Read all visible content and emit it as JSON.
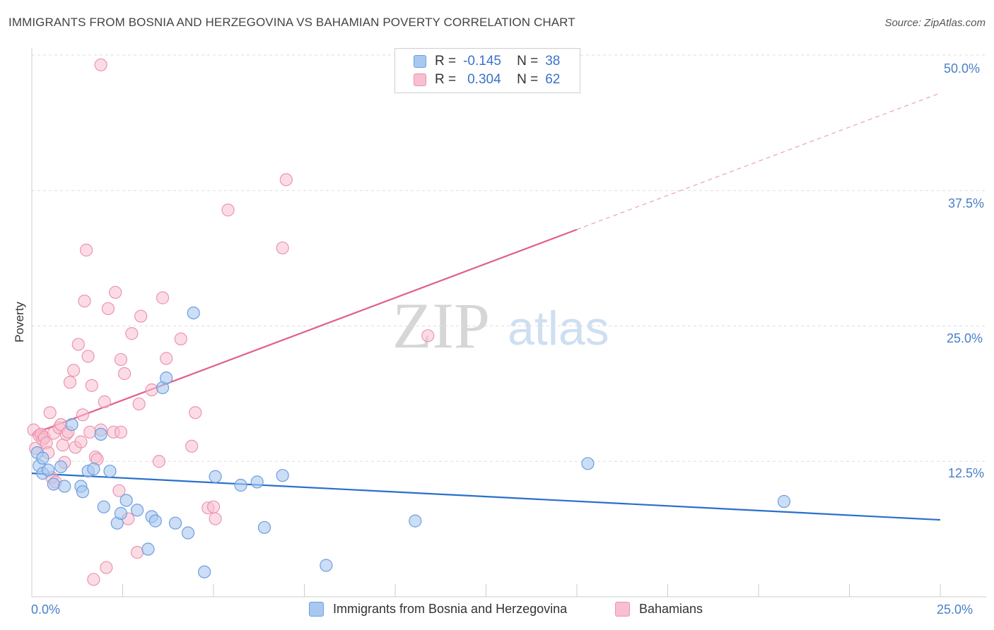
{
  "title": "IMMIGRANTS FROM BOSNIA AND HERZEGOVINA VS BAHAMIAN POVERTY CORRELATION CHART",
  "source": "Source: ZipAtlas.com",
  "watermark": {
    "zip": "ZIP",
    "atlas": "atlas"
  },
  "legend": {
    "rows": [
      {
        "r_label": "R =",
        "r_value": "-0.145",
        "n_label": "N =",
        "n_value": "38"
      },
      {
        "r_label": "R =",
        "r_value": "0.304",
        "n_label": "N =",
        "n_value": "62"
      }
    ]
  },
  "bottom_legend": [
    "Immigrants from Bosnia and Herzegovina",
    "Bahamians"
  ],
  "colors": {
    "blue_fill": "#a9c8ef",
    "blue_stroke": "#6d9ee0",
    "blue_line": "#2a6fcc",
    "pink_fill": "#f7bfd0",
    "pink_stroke": "#ec94b0",
    "pink_line": "#e0608a",
    "grid": "#dddddd",
    "tick_text": "#4a7fc8"
  },
  "chart_data": {
    "type": "scatter",
    "title": "IMMIGRANTS FROM BOSNIA AND HERZEGOVINA VS BAHAMIAN POVERTY CORRELATION CHART",
    "xlabel": "",
    "ylabel": "Poverty",
    "xlim": [
      0,
      25
    ],
    "ylim": [
      0,
      50
    ],
    "x_tick_labels": [
      "0.0%",
      "25.0%"
    ],
    "y_tick_labels": [
      "12.5%",
      "25.0%",
      "37.5%",
      "50.0%"
    ],
    "y_tick_values": [
      12.5,
      25.0,
      37.5,
      50.0
    ],
    "grid": true,
    "series": [
      {
        "name": "Immigrants from Bosnia and Herzegovina",
        "r": -0.145,
        "n": 38,
        "trend": {
          "x": [
            0,
            25
          ],
          "y": [
            11.4,
            7.1
          ]
        },
        "points": [
          [
            0.15,
            13.3
          ],
          [
            0.2,
            12.1
          ],
          [
            0.3,
            11.4
          ],
          [
            0.45,
            11.7
          ],
          [
            0.6,
            10.4
          ],
          [
            0.8,
            12.0
          ],
          [
            0.9,
            10.2
          ],
          [
            1.1,
            15.9
          ],
          [
            1.35,
            10.2
          ],
          [
            1.4,
            9.7
          ],
          [
            1.55,
            11.6
          ],
          [
            1.7,
            11.8
          ],
          [
            1.9,
            15.0
          ],
          [
            1.98,
            8.3
          ],
          [
            2.15,
            11.6
          ],
          [
            2.35,
            6.8
          ],
          [
            2.45,
            7.7
          ],
          [
            2.6,
            8.9
          ],
          [
            2.9,
            8.0
          ],
          [
            3.2,
            4.4
          ],
          [
            3.3,
            7.4
          ],
          [
            3.4,
            7.0
          ],
          [
            3.6,
            19.3
          ],
          [
            3.7,
            20.2
          ],
          [
            3.95,
            6.8
          ],
          [
            4.3,
            5.9
          ],
          [
            4.45,
            26.2
          ],
          [
            4.75,
            2.3
          ],
          [
            5.05,
            11.1
          ],
          [
            5.75,
            10.3
          ],
          [
            6.2,
            10.6
          ],
          [
            6.4,
            6.4
          ],
          [
            6.9,
            11.2
          ],
          [
            8.1,
            2.9
          ],
          [
            10.55,
            7.0
          ],
          [
            15.3,
            12.3
          ],
          [
            20.7,
            8.8
          ],
          [
            0.3,
            12.8
          ]
        ]
      },
      {
        "name": "Bahamians",
        "r": 0.304,
        "n": 62,
        "trend": {
          "x": [
            0,
            15.0
          ],
          "y": [
            15.0,
            33.9
          ]
        },
        "trend_dashed": {
          "x": [
            15.0,
            25
          ],
          "y": [
            33.9,
            46.5
          ]
        },
        "points": [
          [
            0.05,
            15.4
          ],
          [
            0.1,
            13.7
          ],
          [
            0.2,
            14.9
          ],
          [
            0.25,
            15.0
          ],
          [
            0.3,
            14.5
          ],
          [
            0.35,
            14.7
          ],
          [
            0.4,
            14.2
          ],
          [
            0.45,
            13.3
          ],
          [
            0.5,
            17.0
          ],
          [
            0.55,
            11.0
          ],
          [
            0.6,
            15.1
          ],
          [
            0.65,
            10.6
          ],
          [
            0.75,
            15.6
          ],
          [
            0.8,
            15.9
          ],
          [
            0.85,
            14.0
          ],
          [
            0.9,
            12.4
          ],
          [
            0.95,
            15.0
          ],
          [
            1.0,
            15.2
          ],
          [
            1.05,
            19.8
          ],
          [
            1.15,
            20.9
          ],
          [
            1.2,
            13.8
          ],
          [
            1.28,
            23.3
          ],
          [
            1.35,
            14.3
          ],
          [
            1.4,
            16.8
          ],
          [
            1.45,
            27.3
          ],
          [
            1.5,
            32.0
          ],
          [
            1.55,
            22.2
          ],
          [
            1.6,
            15.2
          ],
          [
            1.65,
            19.5
          ],
          [
            1.7,
            1.6
          ],
          [
            1.75,
            12.9
          ],
          [
            1.8,
            12.7
          ],
          [
            1.9,
            15.4
          ],
          [
            2.0,
            18.0
          ],
          [
            2.05,
            2.7
          ],
          [
            2.1,
            26.6
          ],
          [
            2.25,
            15.2
          ],
          [
            2.3,
            28.1
          ],
          [
            2.4,
            9.8
          ],
          [
            2.45,
            21.9
          ],
          [
            2.55,
            20.6
          ],
          [
            2.65,
            7.2
          ],
          [
            2.75,
            24.3
          ],
          [
            2.9,
            4.1
          ],
          [
            2.95,
            17.8
          ],
          [
            3.0,
            25.9
          ],
          [
            3.3,
            19.1
          ],
          [
            3.5,
            12.5
          ],
          [
            3.6,
            27.6
          ],
          [
            3.7,
            22.0
          ],
          [
            4.1,
            23.8
          ],
          [
            4.4,
            13.9
          ],
          [
            4.5,
            17.0
          ],
          [
            4.85,
            8.2
          ],
          [
            5.0,
            8.3
          ],
          [
            5.05,
            7.2
          ],
          [
            5.4,
            35.7
          ],
          [
            1.9,
            49.1
          ],
          [
            6.9,
            32.2
          ],
          [
            7.0,
            38.5
          ],
          [
            10.9,
            24.1
          ],
          [
            2.45,
            15.2
          ]
        ]
      }
    ]
  }
}
